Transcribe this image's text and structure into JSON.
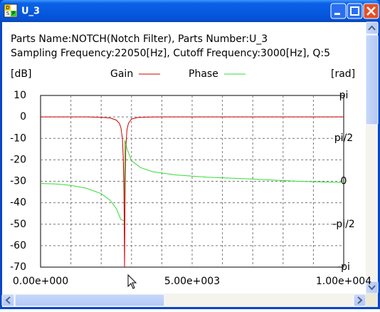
{
  "window": {
    "title": "U_3",
    "icon_letters": [
      "D",
      "S",
      "P"
    ]
  },
  "chart_data": {
    "type": "line",
    "info_lines": [
      "Parts Name:NOTCH(Notch Filter), Parts Number:U_3",
      "Sampling Frequency:22050[Hz], Cutoff Frequency:3000[Hz], Q:5"
    ],
    "y_label": "[dB]",
    "y2_label": "[rad]",
    "xlim": [
      0,
      10000
    ],
    "xticks": [
      {
        "value": 0,
        "label": "0.00e+000"
      },
      {
        "value": 5000,
        "label": "5.00e+003"
      },
      {
        "value": 10000,
        "label": "1.00e+004"
      }
    ],
    "x_grid": [
      1000,
      2000,
      3000,
      4000,
      5000,
      6000,
      7000,
      8000,
      9000
    ],
    "ylim": [
      -70,
      10
    ],
    "yticks": [
      10,
      0,
      -10,
      -20,
      -30,
      -40,
      -50,
      -60,
      -70
    ],
    "y2lim": [
      -3.14159,
      3.14159
    ],
    "y2ticks": [
      {
        "value": 3.14159,
        "label": "pi"
      },
      {
        "value": 1.5708,
        "label": "pi/2"
      },
      0,
      {
        "value": -1.5708,
        "label": "-pi/2"
      },
      {
        "value": -3.14159,
        "label": "-pi"
      }
    ],
    "grid": true,
    "series": [
      {
        "name": "Gain",
        "color": "#cc0000",
        "x": [
          0,
          500,
          1000,
          1500,
          2000,
          2300,
          2500,
          2600,
          2650,
          2700,
          2730,
          2750,
          2770,
          2790,
          2810,
          2850,
          2900,
          3000,
          3200,
          3500,
          4000,
          5000,
          6000,
          8000,
          10000
        ],
        "values": [
          0,
          0,
          0,
          0,
          -0.2,
          -0.5,
          -1.5,
          -3,
          -5,
          -10,
          -20,
          -35,
          -70,
          -30,
          -15,
          -6,
          -3,
          -1,
          -0.3,
          -0.1,
          0,
          0,
          0,
          0,
          0
        ]
      },
      {
        "name": "Phase",
        "color": "#33dd33",
        "axis": "y2",
        "x": [
          0,
          500,
          1000,
          1500,
          2000,
          2300,
          2500,
          2650,
          2760,
          2780,
          2850,
          3000,
          3300,
          3700,
          4500,
          5500,
          7000,
          8500,
          10000
        ],
        "values": [
          -0.08,
          -0.1,
          -0.15,
          -0.25,
          -0.45,
          -0.7,
          -1.0,
          -1.4,
          -1.45,
          1.5,
          1.2,
          0.75,
          0.5,
          0.35,
          0.23,
          0.15,
          0.08,
          0.0,
          -0.05
        ]
      }
    ]
  }
}
